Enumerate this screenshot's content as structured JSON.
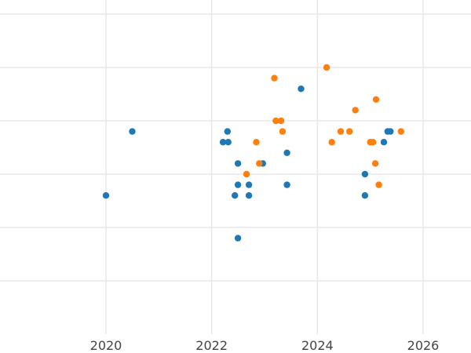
{
  "chart_data": {
    "type": "scatter",
    "title": "",
    "xlabel": "",
    "ylabel": "",
    "x_ticks": [
      "2020",
      "2022",
      "2024",
      "2026"
    ],
    "xlim": [
      "2018-09-01",
      "2026-12-31"
    ],
    "ylim": [
      0,
      6
    ],
    "y_gridlines": [
      1,
      2,
      3,
      4,
      5,
      6
    ],
    "grid": true,
    "y_tick_labels_shown": false,
    "legend": "none",
    "series": [
      {
        "color": "#1f77b4",
        "points": [
          {
            "x": "2020-01-01",
            "y": 2.6
          },
          {
            "x": "2020-07-01",
            "y": 3.8
          },
          {
            "x": "2022-03-20",
            "y": 3.6
          },
          {
            "x": "2022-04-20",
            "y": 3.8
          },
          {
            "x": "2022-04-25",
            "y": 3.6
          },
          {
            "x": "2022-06-10",
            "y": 2.6
          },
          {
            "x": "2022-07-01",
            "y": 3.2
          },
          {
            "x": "2022-07-01",
            "y": 2.8
          },
          {
            "x": "2022-07-01",
            "y": 1.8
          },
          {
            "x": "2022-09-15",
            "y": 2.8
          },
          {
            "x": "2022-09-15",
            "y": 2.6
          },
          {
            "x": "2022-12-20",
            "y": 3.2
          },
          {
            "x": "2023-06-05",
            "y": 3.4
          },
          {
            "x": "2023-06-05",
            "y": 2.8
          },
          {
            "x": "2023-09-10",
            "y": 4.6
          },
          {
            "x": "2024-11-25",
            "y": 3.0
          },
          {
            "x": "2024-11-25",
            "y": 2.6
          },
          {
            "x": "2025-04-05",
            "y": 3.6
          },
          {
            "x": "2025-05-01",
            "y": 3.8
          },
          {
            "x": "2025-05-20",
            "y": 3.8
          }
        ]
      },
      {
        "color": "#ff7f0e",
        "points": [
          {
            "x": "2022-08-30",
            "y": 3.0
          },
          {
            "x": "2022-11-05",
            "y": 3.6
          },
          {
            "x": "2022-11-25",
            "y": 3.2
          },
          {
            "x": "2023-03-10",
            "y": 4.8
          },
          {
            "x": "2023-03-20",
            "y": 4.0
          },
          {
            "x": "2023-04-25",
            "y": 4.0
          },
          {
            "x": "2023-05-05",
            "y": 3.8
          },
          {
            "x": "2024-03-05",
            "y": 5.0
          },
          {
            "x": "2024-04-10",
            "y": 3.6
          },
          {
            "x": "2024-06-10",
            "y": 3.8
          },
          {
            "x": "2024-08-10",
            "y": 3.8
          },
          {
            "x": "2024-09-20",
            "y": 4.2
          },
          {
            "x": "2025-01-01",
            "y": 3.6
          },
          {
            "x": "2025-01-20",
            "y": 3.6
          },
          {
            "x": "2025-02-05",
            "y": 3.2
          },
          {
            "x": "2025-02-10",
            "y": 4.4
          },
          {
            "x": "2025-03-01",
            "y": 2.8
          },
          {
            "x": "2025-08-01",
            "y": 3.8
          }
        ]
      }
    ]
  }
}
